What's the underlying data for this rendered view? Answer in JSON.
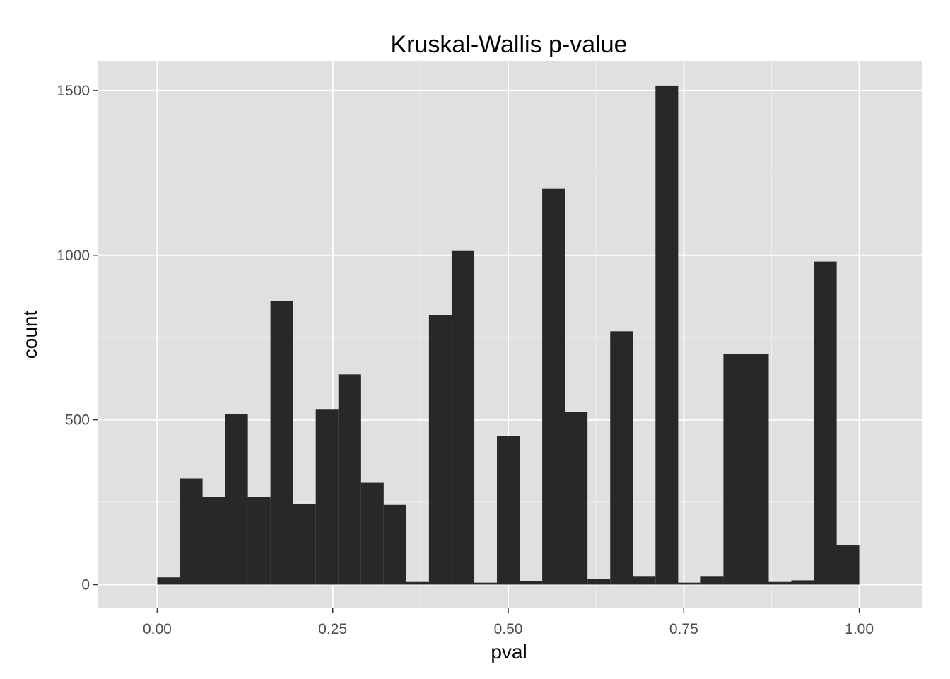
{
  "chart_data": {
    "type": "bar",
    "title": "Kruskal-Wallis p-value",
    "xlabel": "pval",
    "ylabel": "count",
    "xlim": [
      -0.085,
      1.09
    ],
    "ylim": [
      -72,
      1590
    ],
    "x_ticks": [
      {
        "value": 0.0,
        "label": "0.00"
      },
      {
        "value": 0.25,
        "label": "0.25"
      },
      {
        "value": 0.5,
        "label": "0.50"
      },
      {
        "value": 0.75,
        "label": "0.75"
      },
      {
        "value": 1.0,
        "label": "1.00"
      }
    ],
    "y_ticks": [
      {
        "value": 0,
        "label": "0"
      },
      {
        "value": 500,
        "label": "500"
      },
      {
        "value": 1000,
        "label": "1000"
      },
      {
        "value": 1500,
        "label": "1500"
      }
    ],
    "grid": true,
    "bin_width": 0.0323,
    "bins": [
      {
        "x0": 0.0,
        "count": 22
      },
      {
        "x0": 0.0323,
        "count": 322
      },
      {
        "x0": 0.0645,
        "count": 267
      },
      {
        "x0": 0.0968,
        "count": 518
      },
      {
        "x0": 0.129,
        "count": 267
      },
      {
        "x0": 0.1613,
        "count": 862
      },
      {
        "x0": 0.1935,
        "count": 244
      },
      {
        "x0": 0.2258,
        "count": 533
      },
      {
        "x0": 0.2581,
        "count": 638
      },
      {
        "x0": 0.2903,
        "count": 309
      },
      {
        "x0": 0.3226,
        "count": 242
      },
      {
        "x0": 0.3548,
        "count": 8
      },
      {
        "x0": 0.3871,
        "count": 818
      },
      {
        "x0": 0.4194,
        "count": 1013
      },
      {
        "x0": 0.4516,
        "count": 6
      },
      {
        "x0": 0.4839,
        "count": 451
      },
      {
        "x0": 0.5161,
        "count": 11
      },
      {
        "x0": 0.5484,
        "count": 1202
      },
      {
        "x0": 0.5806,
        "count": 524
      },
      {
        "x0": 0.6129,
        "count": 18
      },
      {
        "x0": 0.6452,
        "count": 769
      },
      {
        "x0": 0.6774,
        "count": 24
      },
      {
        "x0": 0.7097,
        "count": 1515
      },
      {
        "x0": 0.7419,
        "count": 6
      },
      {
        "x0": 0.7742,
        "count": 24
      },
      {
        "x0": 0.8065,
        "count": 700
      },
      {
        "x0": 0.8387,
        "count": 700
      },
      {
        "x0": 0.871,
        "count": 8
      },
      {
        "x0": 0.9032,
        "count": 13
      },
      {
        "x0": 0.9355,
        "count": 981
      },
      {
        "x0": 0.9677,
        "count": 119
      }
    ],
    "colors": {
      "panel": "#e0e0e0",
      "grid_major": "#ffffff",
      "grid_minor": "#eeeeee",
      "bar": "#282828",
      "tick_label": "#4d4d4d",
      "tick_mark": "#333333"
    }
  }
}
